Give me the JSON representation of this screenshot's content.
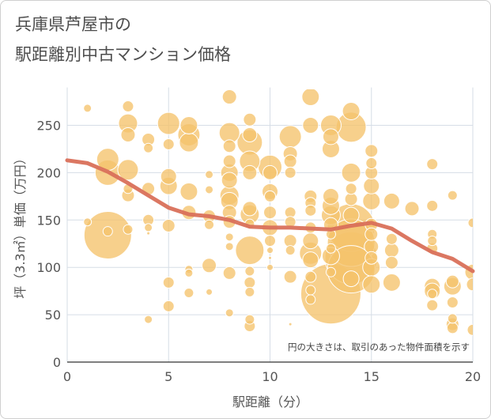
{
  "title_lines": [
    "兵庫県芦屋市の",
    "駅距離別中古マンション価格"
  ],
  "chart_data": {
    "type": "scatter",
    "title": "兵庫県芦屋市の駅距離別中古マンション価格",
    "xlabel": "駅距離（分）",
    "ylabel": "坪（3.3㎡）単価（万円）",
    "xlim": [
      0,
      20
    ],
    "ylim": [
      0,
      290
    ],
    "xticks": [
      0,
      5,
      10,
      15,
      20
    ],
    "yticks": [
      0,
      50,
      100,
      150,
      200,
      250
    ],
    "grid": true,
    "note": "円の大きさは、取引のあった物件面積を示す",
    "colors": {
      "bubble": "#f5c36b",
      "bubble_edge": "#ffffff",
      "trend": "#d9705a",
      "grid": "#d6dde6"
    },
    "trend_line": {
      "x": [
        0,
        1,
        2,
        3,
        4,
        5,
        6,
        7,
        8,
        9,
        10,
        11,
        12,
        13,
        14,
        15,
        16,
        17,
        18,
        19,
        20
      ],
      "y": [
        213,
        210,
        201,
        189,
        176,
        163,
        156,
        154,
        150,
        143,
        142,
        142,
        141,
        140,
        144,
        147,
        141,
        128,
        116,
        109,
        96
      ]
    },
    "points": [
      {
        "x": 1,
        "y": 268,
        "s": 5
      },
      {
        "x": 1,
        "y": 148,
        "s": 5
      },
      {
        "x": 2,
        "y": 134,
        "s": 30
      },
      {
        "x": 2,
        "y": 200,
        "s": 16
      },
      {
        "x": 2,
        "y": 214,
        "s": 14
      },
      {
        "x": 2,
        "y": 138,
        "s": 6
      },
      {
        "x": 3,
        "y": 270,
        "s": 7
      },
      {
        "x": 3,
        "y": 252,
        "s": 12
      },
      {
        "x": 3,
        "y": 240,
        "s": 9
      },
      {
        "x": 3,
        "y": 203,
        "s": 13
      },
      {
        "x": 3,
        "y": 176,
        "s": 8
      },
      {
        "x": 3,
        "y": 140,
        "s": 6
      },
      {
        "x": 3,
        "y": 183,
        "s": 6
      },
      {
        "x": 4,
        "y": 235,
        "s": 8
      },
      {
        "x": 4,
        "y": 226,
        "s": 6
      },
      {
        "x": 4,
        "y": 183,
        "s": 8
      },
      {
        "x": 4,
        "y": 150,
        "s": 7
      },
      {
        "x": 4,
        "y": 142,
        "s": 5
      },
      {
        "x": 4,
        "y": 136,
        "s": 2
      },
      {
        "x": 4,
        "y": 45,
        "s": 5
      },
      {
        "x": 5,
        "y": 252,
        "s": 14
      },
      {
        "x": 5,
        "y": 230,
        "s": 7
      },
      {
        "x": 5,
        "y": 196,
        "s": 10
      },
      {
        "x": 5,
        "y": 186,
        "s": 11
      },
      {
        "x": 5,
        "y": 144,
        "s": 8
      },
      {
        "x": 5,
        "y": 84,
        "s": 7
      },
      {
        "x": 5,
        "y": 59,
        "s": 7
      },
      {
        "x": 6,
        "y": 250,
        "s": 11
      },
      {
        "x": 6,
        "y": 240,
        "s": 14
      },
      {
        "x": 6,
        "y": 232,
        "s": 12
      },
      {
        "x": 6,
        "y": 180,
        "s": 11
      },
      {
        "x": 6,
        "y": 158,
        "s": 9
      },
      {
        "x": 6,
        "y": 98,
        "s": 5
      },
      {
        "x": 6,
        "y": 94,
        "s": 5
      },
      {
        "x": 6,
        "y": 73,
        "s": 6
      },
      {
        "x": 7,
        "y": 198,
        "s": 5
      },
      {
        "x": 7,
        "y": 182,
        "s": 5
      },
      {
        "x": 7,
        "y": 154,
        "s": 8
      },
      {
        "x": 7,
        "y": 145,
        "s": 6
      },
      {
        "x": 7,
        "y": 102,
        "s": 9
      },
      {
        "x": 7,
        "y": 74,
        "s": 4
      },
      {
        "x": 8,
        "y": 280,
        "s": 9
      },
      {
        "x": 8,
        "y": 242,
        "s": 13
      },
      {
        "x": 8,
        "y": 228,
        "s": 8
      },
      {
        "x": 8,
        "y": 212,
        "s": 8
      },
      {
        "x": 8,
        "y": 200,
        "s": 11
      },
      {
        "x": 8,
        "y": 192,
        "s": 10
      },
      {
        "x": 8,
        "y": 176,
        "s": 12
      },
      {
        "x": 8,
        "y": 170,
        "s": 11
      },
      {
        "x": 8,
        "y": 158,
        "s": 9
      },
      {
        "x": 8,
        "y": 148,
        "s": 8
      },
      {
        "x": 8,
        "y": 132,
        "s": 5
      },
      {
        "x": 8,
        "y": 122,
        "s": 5
      },
      {
        "x": 8,
        "y": 94,
        "s": 8
      },
      {
        "x": 8,
        "y": 52,
        "s": 5
      },
      {
        "x": 9,
        "y": 256,
        "s": 8
      },
      {
        "x": 9,
        "y": 240,
        "s": 9
      },
      {
        "x": 9,
        "y": 232,
        "s": 16
      },
      {
        "x": 9,
        "y": 212,
        "s": 13
      },
      {
        "x": 9,
        "y": 200,
        "s": 9
      },
      {
        "x": 9,
        "y": 162,
        "s": 9
      },
      {
        "x": 9,
        "y": 156,
        "s": 12
      },
      {
        "x": 9,
        "y": 146,
        "s": 6
      },
      {
        "x": 9,
        "y": 118,
        "s": 18
      },
      {
        "x": 9,
        "y": 96,
        "s": 6
      },
      {
        "x": 9,
        "y": 84,
        "s": 7
      },
      {
        "x": 9,
        "y": 74,
        "s": 6
      },
      {
        "x": 9,
        "y": 45,
        "s": 6
      },
      {
        "x": 9,
        "y": 38,
        "s": 7
      },
      {
        "x": 10,
        "y": 206,
        "s": 15
      },
      {
        "x": 10,
        "y": 200,
        "s": 9
      },
      {
        "x": 10,
        "y": 180,
        "s": 10
      },
      {
        "x": 10,
        "y": 175,
        "s": 7
      },
      {
        "x": 10,
        "y": 158,
        "s": 8
      },
      {
        "x": 10,
        "y": 142,
        "s": 10
      },
      {
        "x": 10,
        "y": 128,
        "s": 7
      },
      {
        "x": 10,
        "y": 118,
        "s": 4
      },
      {
        "x": 10,
        "y": 110,
        "s": 2
      },
      {
        "x": 10,
        "y": 100,
        "s": 4
      },
      {
        "x": 11,
        "y": 238,
        "s": 14
      },
      {
        "x": 11,
        "y": 220,
        "s": 9
      },
      {
        "x": 11,
        "y": 212,
        "s": 8
      },
      {
        "x": 11,
        "y": 200,
        "s": 7
      },
      {
        "x": 11,
        "y": 158,
        "s": 7
      },
      {
        "x": 11,
        "y": 148,
        "s": 7
      },
      {
        "x": 11,
        "y": 128,
        "s": 8
      },
      {
        "x": 11,
        "y": 118,
        "s": 6
      },
      {
        "x": 11,
        "y": 90,
        "s": 8
      },
      {
        "x": 11,
        "y": 40,
        "s": 2
      },
      {
        "x": 12,
        "y": 280,
        "s": 11
      },
      {
        "x": 12,
        "y": 250,
        "s": 10
      },
      {
        "x": 12,
        "y": 175,
        "s": 8
      },
      {
        "x": 12,
        "y": 168,
        "s": 7
      },
      {
        "x": 12,
        "y": 160,
        "s": 7
      },
      {
        "x": 12,
        "y": 142,
        "s": 7
      },
      {
        "x": 12,
        "y": 128,
        "s": 10
      },
      {
        "x": 12,
        "y": 115,
        "s": 14
      },
      {
        "x": 12,
        "y": 108,
        "s": 10
      },
      {
        "x": 12,
        "y": 90,
        "s": 7
      },
      {
        "x": 12,
        "y": 76,
        "s": 6
      },
      {
        "x": 12,
        "y": 66,
        "s": 6
      },
      {
        "x": 13,
        "y": 250,
        "s": 13
      },
      {
        "x": 13,
        "y": 238,
        "s": 10
      },
      {
        "x": 13,
        "y": 225,
        "s": 11
      },
      {
        "x": 13,
        "y": 175,
        "s": 10
      },
      {
        "x": 13,
        "y": 165,
        "s": 11
      },
      {
        "x": 13,
        "y": 155,
        "s": 12
      },
      {
        "x": 13,
        "y": 145,
        "s": 9
      },
      {
        "x": 13,
        "y": 135,
        "s": 6
      },
      {
        "x": 13,
        "y": 120,
        "s": 6
      },
      {
        "x": 13,
        "y": 112,
        "s": 11
      },
      {
        "x": 13,
        "y": 95,
        "s": 6
      },
      {
        "x": 13,
        "y": 72,
        "s": 38
      },
      {
        "x": 14,
        "y": 265,
        "s": 11
      },
      {
        "x": 14,
        "y": 248,
        "s": 19
      },
      {
        "x": 14,
        "y": 200,
        "s": 12
      },
      {
        "x": 14,
        "y": 183,
        "s": 7
      },
      {
        "x": 14,
        "y": 172,
        "s": 8
      },
      {
        "x": 14,
        "y": 155,
        "s": 10
      },
      {
        "x": 14,
        "y": 142,
        "s": 30
      },
      {
        "x": 14,
        "y": 126,
        "s": 30
      },
      {
        "x": 14,
        "y": 110,
        "s": 33
      },
      {
        "x": 14,
        "y": 98,
        "s": 30
      },
      {
        "x": 14,
        "y": 88,
        "s": 10
      },
      {
        "x": 15,
        "y": 223,
        "s": 8
      },
      {
        "x": 15,
        "y": 210,
        "s": 7
      },
      {
        "x": 15,
        "y": 200,
        "s": 8
      },
      {
        "x": 15,
        "y": 186,
        "s": 10
      },
      {
        "x": 15,
        "y": 170,
        "s": 11
      },
      {
        "x": 15,
        "y": 145,
        "s": 8
      },
      {
        "x": 15,
        "y": 135,
        "s": 8
      },
      {
        "x": 15,
        "y": 122,
        "s": 9
      },
      {
        "x": 15,
        "y": 110,
        "s": 8
      },
      {
        "x": 15,
        "y": 100,
        "s": 11
      },
      {
        "x": 15,
        "y": 82,
        "s": 11
      },
      {
        "x": 16,
        "y": 170,
        "s": 10
      },
      {
        "x": 16,
        "y": 130,
        "s": 7
      },
      {
        "x": 16,
        "y": 118,
        "s": 9
      },
      {
        "x": 16,
        "y": 105,
        "s": 8
      },
      {
        "x": 16,
        "y": 84,
        "s": 11
      },
      {
        "x": 17,
        "y": 162,
        "s": 9
      },
      {
        "x": 18,
        "y": 209,
        "s": 7
      },
      {
        "x": 18,
        "y": 165,
        "s": 7
      },
      {
        "x": 18,
        "y": 135,
        "s": 6
      },
      {
        "x": 18,
        "y": 128,
        "s": 6
      },
      {
        "x": 18,
        "y": 120,
        "s": 7
      },
      {
        "x": 18,
        "y": 80,
        "s": 10
      },
      {
        "x": 18,
        "y": 75,
        "s": 10
      },
      {
        "x": 18,
        "y": 72,
        "s": 6
      },
      {
        "x": 18,
        "y": 60,
        "s": 7
      },
      {
        "x": 19,
        "y": 176,
        "s": 6
      },
      {
        "x": 19,
        "y": 85,
        "s": 8
      },
      {
        "x": 19,
        "y": 80,
        "s": 11
      },
      {
        "x": 19,
        "y": 63,
        "s": 7
      },
      {
        "x": 19,
        "y": 46,
        "s": 6
      },
      {
        "x": 19,
        "y": 40,
        "s": 8
      },
      {
        "x": 19,
        "y": 36,
        "s": 7
      },
      {
        "x": 20,
        "y": 147,
        "s": 6
      },
      {
        "x": 20,
        "y": 95,
        "s": 10
      },
      {
        "x": 20,
        "y": 82,
        "s": 8
      },
      {
        "x": 20,
        "y": 34,
        "s": 7
      }
    ]
  }
}
